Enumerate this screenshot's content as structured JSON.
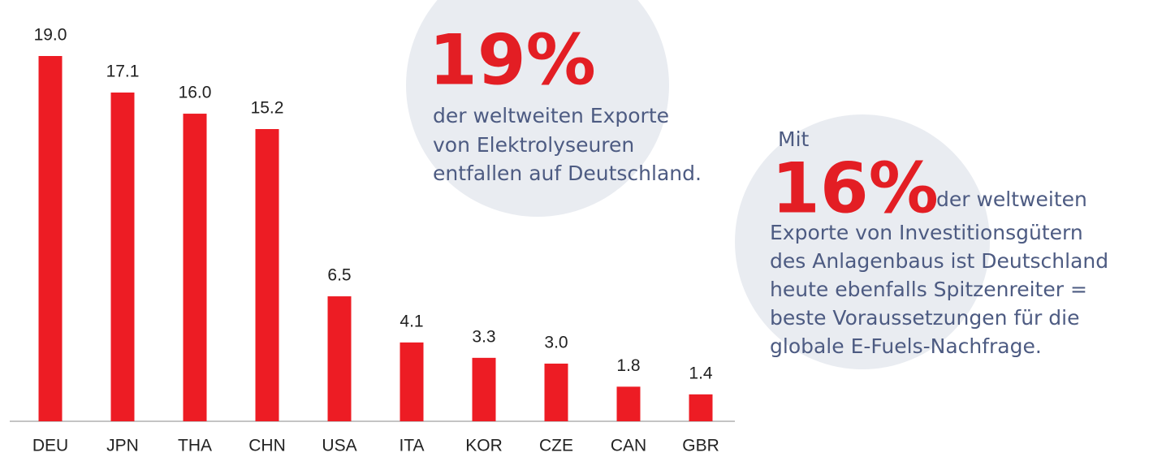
{
  "chart_data": {
    "type": "bar",
    "categories": [
      "DEU",
      "JPN",
      "THA",
      "CHN",
      "USA",
      "ITA",
      "KOR",
      "CZE",
      "CAN",
      "GBR"
    ],
    "values": [
      19.0,
      17.1,
      16.0,
      15.2,
      6.5,
      4.1,
      3.3,
      3.0,
      1.8,
      1.4
    ],
    "value_labels": [
      "19.0",
      "17.1",
      "16.0",
      "15.2",
      "6.5",
      "4.1",
      "3.3",
      "3.0",
      "1.8",
      "1.4"
    ],
    "color": "#ed1c24",
    "annotations": [
      {
        "highlight": "19%",
        "lines": [
          "der weltweiten Exporte",
          "von Elektrolyseuren",
          "entfallen auf Deutschland."
        ]
      },
      {
        "intro": "Mit",
        "highlight": "16%",
        "tail": "der weltweiten",
        "lines": [
          "Exporte von Investitionsgütern",
          "des Anlagenbaus ist Deutschland",
          "heute ebenfalls Spitzenreiter =",
          "beste Voraussetzungen für die",
          "globale E-Fuels-Nachfrage."
        ]
      }
    ]
  }
}
